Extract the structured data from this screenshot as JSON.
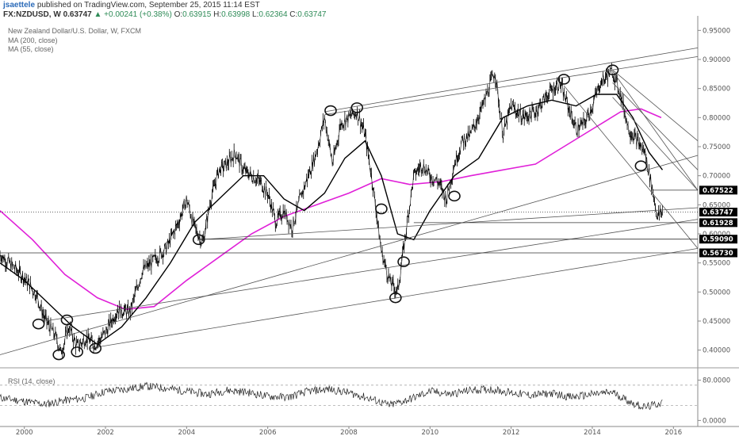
{
  "header": {
    "author": "jsaettele",
    "published_text": "published on TradingView.com, September 25, 2015 11:14 EST",
    "symbol": "FX:NZDUSD, W",
    "last": "0.63747",
    "change": "▲ +0.00241 (+0.38%)",
    "o_label": "O:",
    "o": "0.63915",
    "h_label": "H:",
    "h": "0.63998",
    "l_label": "L:",
    "l": "0.62364",
    "c_label": "C:",
    "c": "0.63747"
  },
  "legend": {
    "title": "New Zealand Dollar/U.S. Dollar, W, FXCM",
    "ma200": "MA (200, close)",
    "ma55": "MA (55, close)",
    "rsi": "RSI (14, close)"
  },
  "colors": {
    "price": "#000000",
    "ma200": "#e020d8",
    "ma55": "#000000",
    "lines": "#555555",
    "label_bg": "#000000",
    "label_fg": "#ffffff"
  },
  "chart_data": [
    {
      "type": "line",
      "title": "New Zealand Dollar/U.S. Dollar, W, FXCM",
      "x_ticks": [
        "2000",
        "2002",
        "2004",
        "2006",
        "2008",
        "2010",
        "2012",
        "2014",
        "2016"
      ],
      "x_tick_years": [
        2000,
        2002,
        2004,
        2006,
        2008,
        2010,
        2012,
        2014,
        2016
      ],
      "xlim": [
        1999.4,
        2016.6
      ],
      "ylim": [
        0.375,
        0.975
      ],
      "y_ticks": [
        0.4,
        0.45,
        0.5,
        0.55,
        0.6,
        0.65,
        0.7,
        0.75,
        0.8,
        0.85,
        0.9,
        0.95
      ],
      "y_tick_labels": [
        "0.40000",
        "0.45000",
        "0.50000",
        "0.55000",
        "0.60000",
        "0.65000",
        "0.70000",
        "0.75000",
        "0.80000",
        "0.85000",
        "0.90000",
        "0.95000"
      ],
      "price_labels": [
        {
          "value": 0.67522,
          "text": "0.67522"
        },
        {
          "value": 0.63747,
          "text": "0.63747"
        },
        {
          "value": 0.61928,
          "text": "0.61928"
        },
        {
          "value": 0.5909,
          "text": "0.59090"
        },
        {
          "value": 0.5673,
          "text": "0.56730"
        }
      ],
      "series": [
        {
          "name": "NZDUSD",
          "x": [
            1999.4,
            1999.7,
            2000.0,
            2000.3,
            2000.5,
            2000.8,
            2000.9,
            2001.1,
            2001.3,
            2001.5,
            2001.75,
            2002.0,
            2002.3,
            2002.6,
            2002.9,
            2003.2,
            2003.5,
            2003.8,
            2004.0,
            2004.2,
            2004.4,
            2004.6,
            2004.8,
            2005.0,
            2005.2,
            2005.4,
            2005.6,
            2005.8,
            2006.0,
            2006.2,
            2006.4,
            2006.6,
            2006.8,
            2007.0,
            2007.2,
            2007.4,
            2007.6,
            2007.8,
            2008.0,
            2008.2,
            2008.4,
            2008.6,
            2008.8,
            2009.0,
            2009.2,
            2009.4,
            2009.6,
            2009.8,
            2010.0,
            2010.2,
            2010.4,
            2010.6,
            2010.8,
            2011.0,
            2011.3,
            2011.6,
            2011.8,
            2012.0,
            2012.3,
            2012.6,
            2012.9,
            2013.2,
            2013.4,
            2013.6,
            2013.8,
            2014.0,
            2014.2,
            2014.5,
            2014.7,
            2014.9,
            2015.1,
            2015.3,
            2015.5,
            2015.6,
            2015.73
          ],
          "values": [
            0.565,
            0.545,
            0.525,
            0.495,
            0.455,
            0.42,
            0.395,
            0.44,
            0.405,
            0.42,
            0.41,
            0.43,
            0.47,
            0.465,
            0.535,
            0.555,
            0.575,
            0.62,
            0.66,
            0.61,
            0.585,
            0.66,
            0.71,
            0.72,
            0.74,
            0.71,
            0.7,
            0.69,
            0.67,
            0.62,
            0.64,
            0.61,
            0.66,
            0.7,
            0.74,
            0.8,
            0.72,
            0.79,
            0.8,
            0.81,
            0.77,
            0.68,
            0.57,
            0.52,
            0.5,
            0.6,
            0.7,
            0.72,
            0.7,
            0.69,
            0.66,
            0.72,
            0.76,
            0.77,
            0.82,
            0.88,
            0.77,
            0.82,
            0.8,
            0.81,
            0.84,
            0.86,
            0.82,
            0.78,
            0.79,
            0.82,
            0.86,
            0.88,
            0.84,
            0.78,
            0.76,
            0.74,
            0.67,
            0.63,
            0.637
          ]
        },
        {
          "name": "MA (200, close)",
          "x": [
            1999.4,
            2000.2,
            2001.0,
            2001.8,
            2002.5,
            2003.2,
            2004.0,
            2004.8,
            2005.6,
            2006.4,
            2007.2,
            2008.0,
            2008.8,
            2009.5,
            2010.3,
            2011.0,
            2011.8,
            2012.6,
            2013.3,
            2014.0,
            2014.7,
            2015.2,
            2015.7
          ],
          "values": [
            0.64,
            0.59,
            0.53,
            0.49,
            0.47,
            0.475,
            0.52,
            0.56,
            0.6,
            0.63,
            0.65,
            0.67,
            0.695,
            0.685,
            0.69,
            0.7,
            0.71,
            0.72,
            0.75,
            0.78,
            0.81,
            0.815,
            0.8
          ]
        },
        {
          "name": "MA (55, close)",
          "x": [
            1999.4,
            2000.0,
            2000.6,
            2001.2,
            2001.8,
            2002.4,
            2003.0,
            2003.6,
            2004.2,
            2004.8,
            2005.4,
            2005.9,
            2006.4,
            2006.9,
            2007.4,
            2007.9,
            2008.4,
            2008.8,
            2009.2,
            2009.6,
            2010.0,
            2010.6,
            2011.2,
            2011.8,
            2012.4,
            2013.0,
            2013.6,
            2014.1,
            2014.6,
            2015.0,
            2015.4,
            2015.73
          ],
          "values": [
            0.55,
            0.52,
            0.48,
            0.44,
            0.41,
            0.44,
            0.49,
            0.55,
            0.62,
            0.66,
            0.7,
            0.7,
            0.66,
            0.64,
            0.67,
            0.73,
            0.76,
            0.7,
            0.6,
            0.59,
            0.64,
            0.7,
            0.73,
            0.8,
            0.82,
            0.83,
            0.82,
            0.84,
            0.84,
            0.8,
            0.74,
            0.71
          ]
        }
      ],
      "trendlines": [
        {
          "x1": 2007.4,
          "y1": 0.81,
          "x2": 2016.6,
          "y2": 0.92
        },
        {
          "x1": 2007.4,
          "y1": 0.805,
          "x2": 2016.6,
          "y2": 0.905
        },
        {
          "x1": 1999.4,
          "y1": 0.392,
          "x2": 2016.6,
          "y2": 0.735
        },
        {
          "x1": 2004.3,
          "y1": 0.59,
          "x2": 2016.6,
          "y2": 0.645
        },
        {
          "x1": 2000.5,
          "y1": 0.45,
          "x2": 2016.6,
          "y2": 0.625
        },
        {
          "x1": 2001.6,
          "y1": 0.403,
          "x2": 2016.6,
          "y2": 0.575
        },
        {
          "x1": 2013.3,
          "y1": 0.855,
          "x2": 2016.6,
          "y2": 0.575
        },
        {
          "x1": 2014.5,
          "y1": 0.882,
          "x2": 2016.6,
          "y2": 0.76
        },
        {
          "x1": 2014.5,
          "y1": 0.86,
          "x2": 2016.6,
          "y2": 0.71
        },
        {
          "x1": 2014.5,
          "y1": 0.835,
          "x2": 2016.6,
          "y2": 0.675
        },
        {
          "x1": 2014.5,
          "y1": 0.88,
          "x2": 2016.6,
          "y2": 0.675
        }
      ],
      "horizontals": [
        {
          "value": 0.63747,
          "dashed": true
        },
        {
          "value": 0.61928,
          "x_start": 2009.6
        },
        {
          "value": 0.5909,
          "x_start": 2004.3
        },
        {
          "value": 0.5673,
          "x_start": 1999.4
        },
        {
          "value": 0.67522,
          "x_start": 2015.5
        }
      ],
      "markers": [
        {
          "x": 2000.35,
          "y": 0.445
        },
        {
          "x": 2000.85,
          "y": 0.392
        },
        {
          "x": 2001.05,
          "y": 0.452
        },
        {
          "x": 2001.3,
          "y": 0.397
        },
        {
          "x": 2001.75,
          "y": 0.403
        },
        {
          "x": 2004.3,
          "y": 0.59
        },
        {
          "x": 2007.55,
          "y": 0.812
        },
        {
          "x": 2008.2,
          "y": 0.817
        },
        {
          "x": 2008.8,
          "y": 0.643
        },
        {
          "x": 2009.15,
          "y": 0.49
        },
        {
          "x": 2009.35,
          "y": 0.552
        },
        {
          "x": 2010.6,
          "y": 0.665
        },
        {
          "x": 2013.3,
          "y": 0.866
        },
        {
          "x": 2014.5,
          "y": 0.882
        },
        {
          "x": 2015.2,
          "y": 0.717
        }
      ]
    },
    {
      "type": "line",
      "title": "RSI (14, close)",
      "ylim": [
        -12,
        95
      ],
      "y_ticks": [
        0,
        80
      ],
      "y_tick_labels": [
        "0.0000",
        "80.0000"
      ],
      "bands": [
        30,
        70
      ],
      "series": [
        {
          "name": "RSI (14, close)",
          "x": [
            1999.4,
            2000.0,
            2000.5,
            2001.0,
            2001.5,
            2002.0,
            2002.5,
            2003.0,
            2003.5,
            2004.0,
            2004.5,
            2005.0,
            2005.5,
            2006.0,
            2006.5,
            2007.0,
            2007.5,
            2008.0,
            2008.5,
            2009.0,
            2009.5,
            2010.0,
            2010.5,
            2011.0,
            2011.5,
            2012.0,
            2012.5,
            2013.0,
            2013.5,
            2014.0,
            2014.5,
            2015.0,
            2015.3,
            2015.5,
            2015.73
          ],
          "values": [
            45,
            38,
            32,
            40,
            44,
            58,
            62,
            68,
            64,
            58,
            52,
            60,
            56,
            48,
            46,
            58,
            62,
            55,
            44,
            30,
            42,
            58,
            52,
            60,
            62,
            55,
            50,
            54,
            46,
            52,
            56,
            34,
            26,
            30,
            36
          ]
        }
      ]
    }
  ]
}
